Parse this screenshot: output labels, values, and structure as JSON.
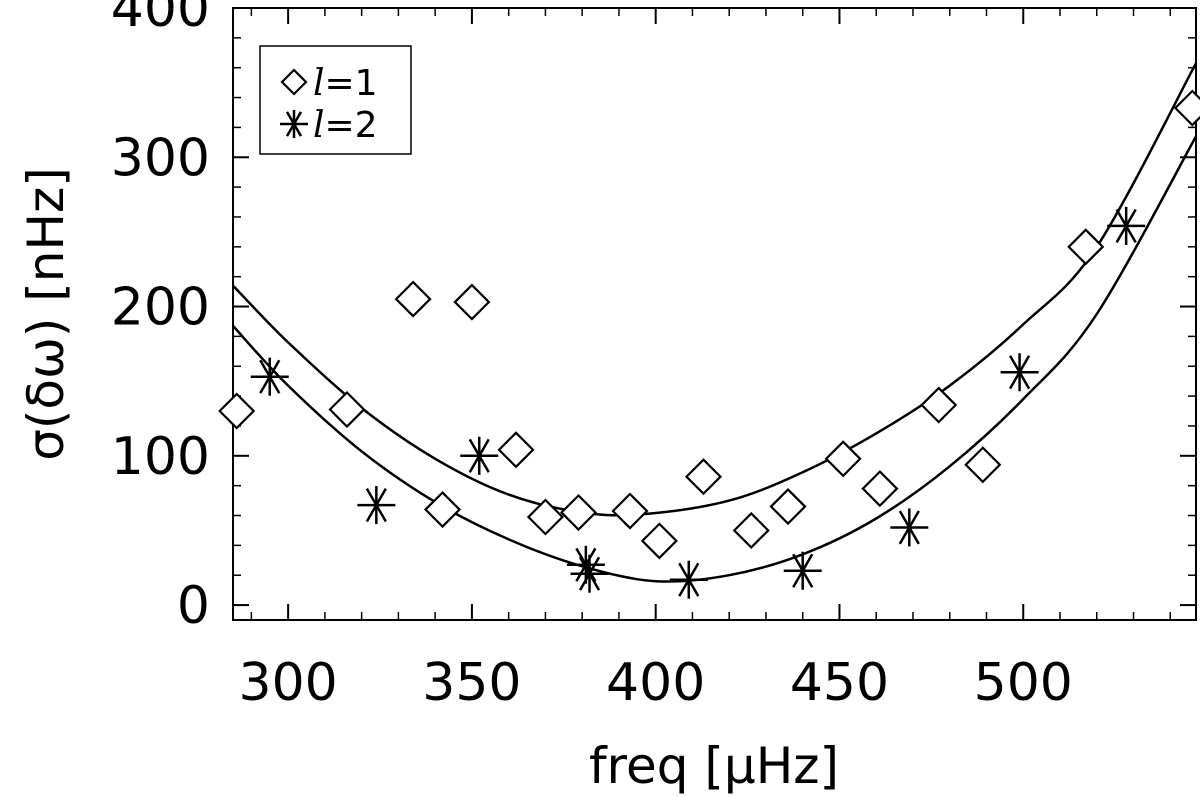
{
  "chart_data": {
    "type": "scatter",
    "xlabel": "freq [μHz]",
    "ylabel": "σ(δω) [nHz]",
    "xlim": [
      285,
      547
    ],
    "ylim": [
      -10,
      400
    ],
    "xticks": [
      300,
      350,
      400,
      450,
      500
    ],
    "yticks": [
      0,
      100,
      200,
      300,
      400
    ],
    "legend_position": "top-left",
    "grid": false,
    "series": [
      {
        "name": "l=1",
        "legend_symbol": "l",
        "legend_value": "=1",
        "marker": "diamond",
        "x": [
          286,
          316,
          334,
          342,
          350,
          362,
          370,
          379,
          393,
          401,
          413,
          426,
          436,
          451,
          461,
          477,
          489,
          517,
          546
        ],
        "y": [
          130,
          131,
          205,
          64,
          203,
          104,
          59,
          62,
          63,
          43,
          86,
          50,
          66,
          98,
          78,
          134,
          94,
          240,
          333
        ]
      },
      {
        "name": "l=2",
        "legend_symbol": "l",
        "legend_value": "=2",
        "marker": "asterisk",
        "x": [
          295,
          324,
          352,
          381,
          382,
          409,
          440,
          469,
          499,
          528
        ],
        "y": [
          153,
          67,
          100,
          27,
          21,
          17,
          23,
          52,
          156,
          254
        ]
      }
    ],
    "fit_curves": [
      {
        "series": "l=1",
        "x": [
          285,
          300,
          320,
          340,
          360,
          380,
          397,
          420,
          440,
          460,
          480,
          500,
          520,
          547
        ],
        "y": [
          214,
          176,
          132,
          98,
          74,
          62,
          61,
          70,
          89,
          115,
          147,
          188,
          240,
          363
        ]
      },
      {
        "series": "l=2",
        "x": [
          285,
          300,
          320,
          340,
          360,
          380,
          400,
          420,
          440,
          460,
          480,
          500,
          520,
          547
        ],
        "y": [
          187,
          147,
          103,
          69,
          44,
          26,
          16,
          20,
          34,
          58,
          93,
          138,
          195,
          314
        ]
      }
    ]
  }
}
